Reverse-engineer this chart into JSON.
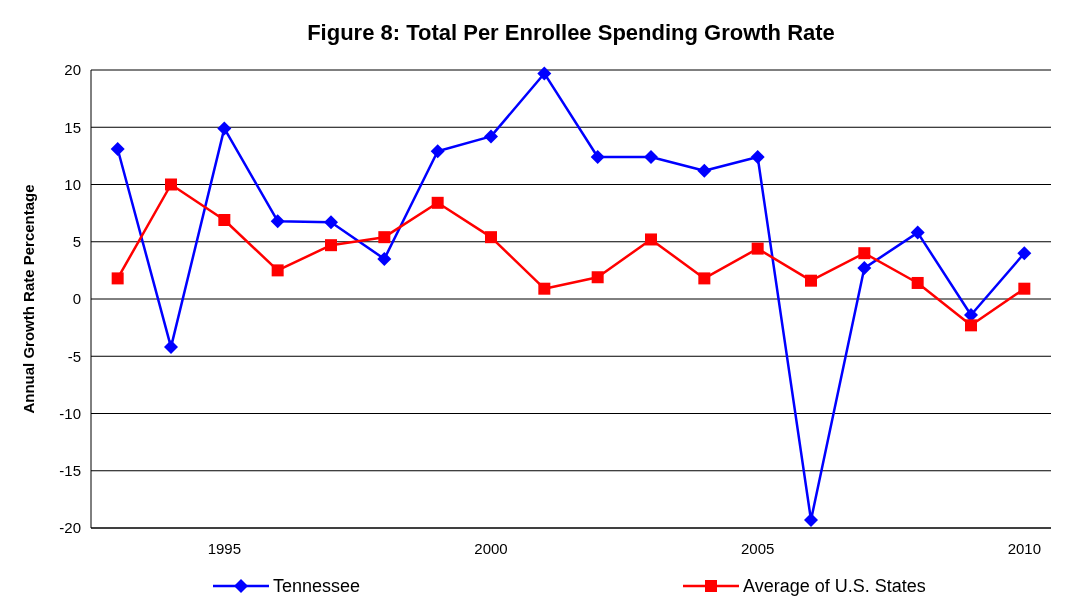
{
  "chart_data": {
    "type": "line",
    "title": "Figure 8: Total Per Enrollee Spending Growth Rate",
    "ylabel": "Annual Growth Rate Percentage",
    "x": [
      1993,
      1994,
      1995,
      1996,
      1997,
      1998,
      1999,
      2000,
      2001,
      2002,
      2003,
      2004,
      2005,
      2006,
      2007,
      2008,
      2009,
      2010
    ],
    "xlim": [
      1992.5,
      2010.5
    ],
    "xticks": [
      1995,
      2000,
      2005,
      2010
    ],
    "ylim": [
      -20,
      20
    ],
    "yticks": [
      -20,
      -15,
      -10,
      -5,
      0,
      5,
      10,
      15,
      20
    ],
    "grid": "y",
    "legend": "bottom",
    "series": [
      {
        "name": "Tennessee",
        "color": "#0000ff",
        "marker": "diamond",
        "values": [
          13.1,
          -4.2,
          14.9,
          6.8,
          6.7,
          3.5,
          12.9,
          14.2,
          19.7,
          12.4,
          12.4,
          11.2,
          12.4,
          -19.3,
          2.7,
          5.8,
          -1.4,
          4.0
        ]
      },
      {
        "name": "Average of U.S. States",
        "color": "#ff0000",
        "marker": "square",
        "values": [
          1.8,
          10.0,
          6.9,
          2.5,
          4.7,
          5.4,
          8.4,
          5.4,
          0.9,
          1.9,
          5.2,
          1.8,
          4.4,
          1.6,
          4.0,
          1.4,
          -2.3,
          0.9
        ]
      }
    ]
  }
}
